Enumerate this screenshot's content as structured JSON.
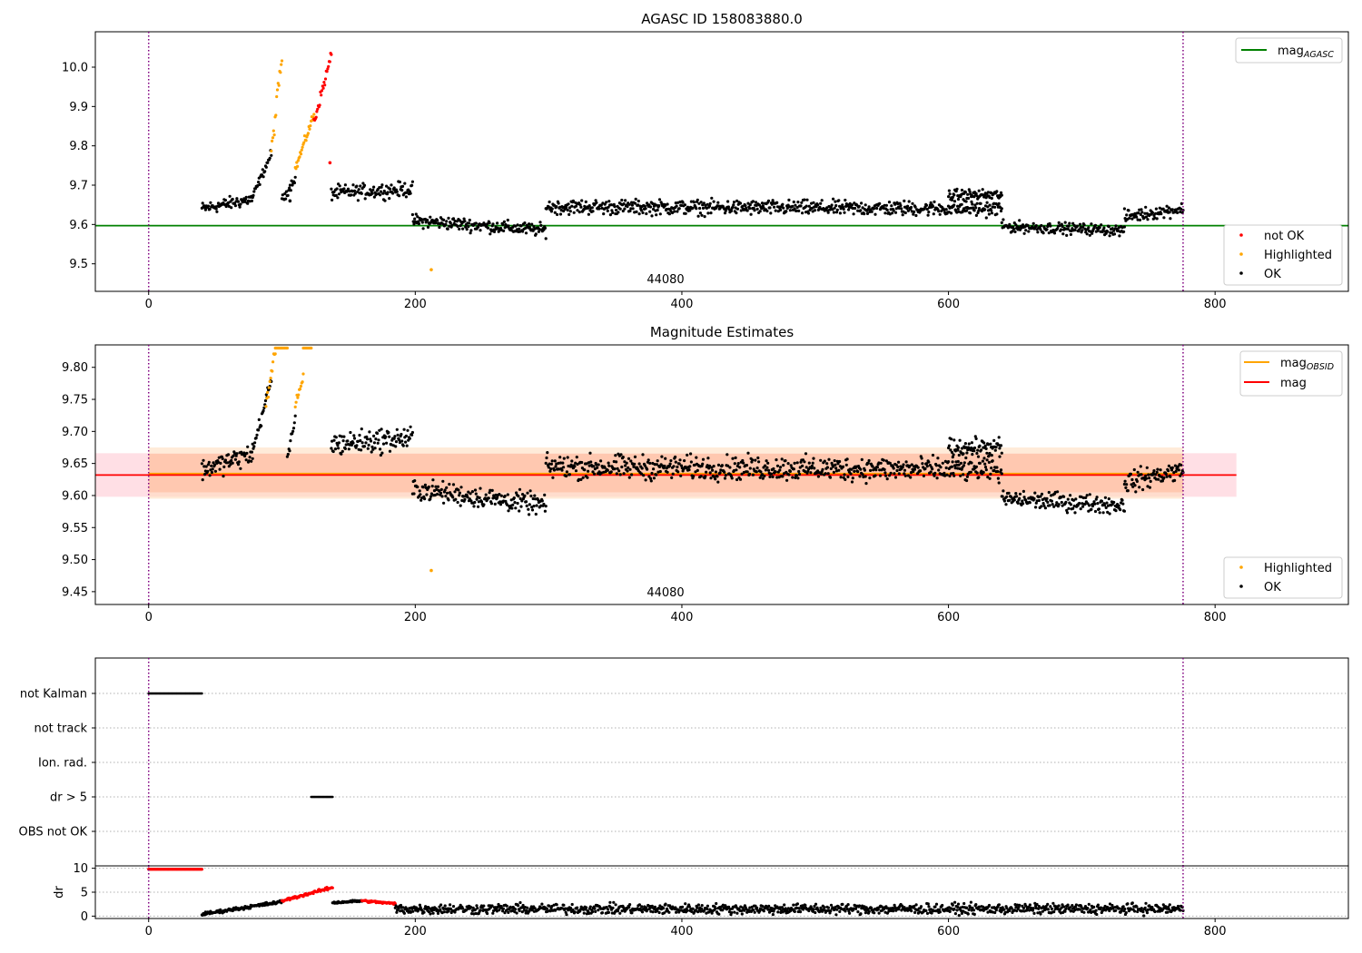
{
  "chart_data": [
    {
      "type": "scatter",
      "title": "AGASC ID 158083880.0",
      "xlim": [
        -40,
        900
      ],
      "ylim": [
        9.43,
        10.09
      ],
      "x_ticks": [
        0,
        200,
        400,
        600,
        800
      ],
      "y_ticks": [
        9.5,
        9.6,
        9.7,
        9.8,
        9.9,
        10.0
      ],
      "y_tick_labels": [
        "9.5",
        "9.6",
        "9.7",
        "9.8",
        "9.9",
        "10.0"
      ],
      "obsid_label": "44080",
      "obs_boundaries": [
        0,
        776
      ],
      "reference_lines": [
        {
          "y": 9.597,
          "color": "#008000"
        }
      ],
      "legend_top": {
        "placement": "upper-right",
        "entries": [
          {
            "label": "mag",
            "sub": "AGASC",
            "color": "#008000",
            "marker": "line"
          }
        ]
      },
      "legend_bottom": {
        "placement": "lower-right",
        "entries": [
          {
            "label": "not OK",
            "color": "#ff0000",
            "marker": "dot"
          },
          {
            "label": "Highlighted",
            "color": "#ffa500",
            "marker": "dot"
          },
          {
            "label": "OK",
            "color": "#000000",
            "marker": "dot"
          }
        ]
      },
      "segments": [
        {
          "x0": 40,
          "x1": 78,
          "y0": 9.64,
          "y1": 9.665,
          "noise": 0.014,
          "color": "#000000"
        },
        {
          "x0": 78,
          "x1": 92,
          "y0": 9.67,
          "y1": 9.78,
          "noise": 0.01,
          "color": "#000000"
        },
        {
          "x0": 92,
          "x1": 100,
          "y0": 9.78,
          "y1": 10.03,
          "noise": 0.02,
          "color": "#ffa500"
        },
        {
          "x0": 100,
          "x1": 110,
          "y0": 9.66,
          "y1": 9.72,
          "noise": 0.01,
          "color": "#000000"
        },
        {
          "x0": 110,
          "x1": 124,
          "y0": 9.74,
          "y1": 9.88,
          "noise": 0.01,
          "color": "#ffa500"
        },
        {
          "x0": 124,
          "x1": 137,
          "y0": 9.86,
          "y1": 10.03,
          "noise": 0.012,
          "color": "#ff0000"
        },
        {
          "x0": 137,
          "x1": 198,
          "y0": 9.68,
          "y1": 9.69,
          "noise": 0.016,
          "color": "#000000"
        },
        {
          "x0": 198,
          "x1": 298,
          "y0": 9.61,
          "y1": 9.585,
          "noise": 0.014,
          "color": "#000000"
        },
        {
          "x0": 298,
          "x1": 640,
          "y0": 9.645,
          "y1": 9.64,
          "noise": 0.016,
          "color": "#000000"
        },
        {
          "x0": 600,
          "x1": 640,
          "y0": 9.675,
          "y1": 9.675,
          "noise": 0.012,
          "color": "#000000"
        },
        {
          "x0": 640,
          "x1": 732,
          "y0": 9.595,
          "y1": 9.585,
          "noise": 0.012,
          "color": "#000000"
        },
        {
          "x0": 732,
          "x1": 776,
          "y0": 9.62,
          "y1": 9.64,
          "noise": 0.014,
          "color": "#000000"
        }
      ],
      "points": [
        {
          "x": 136,
          "y": 9.757,
          "color": "#ff0000"
        },
        {
          "x": 106,
          "y": 9.66,
          "color": "#000000"
        },
        {
          "x": 212,
          "y": 9.485,
          "color": "#ffa500"
        }
      ]
    },
    {
      "type": "scatter",
      "title": "Magnitude Estimates",
      "xlim": [
        -40,
        900
      ],
      "ylim": [
        9.43,
        9.835
      ],
      "x_ticks": [
        0,
        200,
        400,
        600,
        800
      ],
      "y_ticks": [
        9.45,
        9.5,
        9.55,
        9.6,
        9.65,
        9.7,
        9.75,
        9.8
      ],
      "y_tick_labels": [
        "9.45",
        "9.50",
        "9.55",
        "9.60",
        "9.65",
        "9.70",
        "9.75",
        "9.80"
      ],
      "obsid_label": "44080",
      "obs_boundaries": [
        0,
        776
      ],
      "bands": [
        {
          "x0": -40,
          "x1": 816,
          "y0": 9.598,
          "y1": 9.666,
          "color": "#ffc0cb",
          "opacity": 0.5
        },
        {
          "x0": 0,
          "x1": 776,
          "y0": 9.595,
          "y1": 9.675,
          "color": "#ffdab9",
          "opacity": 0.55
        },
        {
          "x0": 0,
          "x1": 776,
          "y0": 9.605,
          "y1": 9.665,
          "color": "#ffa07a",
          "opacity": 0.35
        }
      ],
      "lines": [
        {
          "x0": 0,
          "x1": 776,
          "y": 9.634,
          "color": "#ffa500",
          "width": 2.2
        },
        {
          "x0": -40,
          "x1": 816,
          "y": 9.632,
          "color": "#ff0000",
          "width": 1.8
        }
      ],
      "legend_top": {
        "placement": "upper-right",
        "entries": [
          {
            "label": "mag",
            "sub": "OBSID",
            "color": "#ffa500",
            "marker": "line"
          },
          {
            "label": "mag",
            "sub": "",
            "color": "#ff0000",
            "marker": "line"
          }
        ]
      },
      "legend_bottom": {
        "placement": "lower-right",
        "entries": [
          {
            "label": "Highlighted",
            "color": "#ffa500",
            "marker": "dot"
          },
          {
            "label": "OK",
            "color": "#000000",
            "marker": "dot"
          }
        ]
      },
      "segments": [
        {
          "x0": 40,
          "x1": 78,
          "y0": 9.64,
          "y1": 9.665,
          "noise": 0.014,
          "color": "#000000"
        },
        {
          "x0": 78,
          "x1": 92,
          "y0": 9.67,
          "y1": 9.78,
          "noise": 0.01,
          "color": "#000000"
        },
        {
          "x0": 88,
          "x1": 95,
          "y0": 9.74,
          "y1": 9.83,
          "noise": 0.008,
          "color": "#ffa500"
        },
        {
          "x0": 95,
          "x1": 104,
          "y0": 9.83,
          "y1": 9.83,
          "noise": 0.0,
          "color": "#ffa500"
        },
        {
          "x0": 104,
          "x1": 110,
          "y0": 9.66,
          "y1": 9.72,
          "noise": 0.01,
          "color": "#000000"
        },
        {
          "x0": 110,
          "x1": 116,
          "y0": 9.74,
          "y1": 9.78,
          "noise": 0.008,
          "color": "#ffa500"
        },
        {
          "x0": 116,
          "x1": 122,
          "y0": 9.83,
          "y1": 9.83,
          "noise": 0.0,
          "color": "#ffa500"
        },
        {
          "x0": 137,
          "x1": 198,
          "y0": 9.68,
          "y1": 9.69,
          "noise": 0.016,
          "color": "#000000"
        },
        {
          "x0": 198,
          "x1": 298,
          "y0": 9.61,
          "y1": 9.585,
          "noise": 0.014,
          "color": "#000000"
        },
        {
          "x0": 298,
          "x1": 640,
          "y0": 9.645,
          "y1": 9.64,
          "noise": 0.016,
          "color": "#000000"
        },
        {
          "x0": 600,
          "x1": 640,
          "y0": 9.675,
          "y1": 9.675,
          "noise": 0.012,
          "color": "#000000"
        },
        {
          "x0": 640,
          "x1": 732,
          "y0": 9.595,
          "y1": 9.585,
          "noise": 0.012,
          "color": "#000000"
        },
        {
          "x0": 732,
          "x1": 776,
          "y0": 9.62,
          "y1": 9.64,
          "noise": 0.014,
          "color": "#000000"
        }
      ],
      "points": [
        {
          "x": 212,
          "y": 9.483,
          "color": "#ffa500"
        }
      ]
    },
    {
      "type": "scatter",
      "title": "",
      "xlim": [
        -40,
        900
      ],
      "obs_boundaries": [
        0,
        776
      ],
      "flag_rows": [
        "not Kalman",
        "not track",
        "Ion. rad.",
        "dr > 5",
        "OBS not OK"
      ],
      "flag_runs": [
        {
          "row": 0,
          "x0": 0,
          "x1": 40,
          "color": "#000000"
        },
        {
          "row": 3,
          "x0": 122,
          "x1": 138,
          "color": "#000000"
        }
      ]
    },
    {
      "type": "scatter",
      "title": "",
      "ylabel": "dr",
      "xlim": [
        -40,
        900
      ],
      "ylim": [
        -0.5,
        10.5
      ],
      "x_ticks": [
        0,
        200,
        400,
        600,
        800
      ],
      "y_ticks": [
        0,
        5,
        10
      ],
      "y_tick_labels": [
        "0",
        "5",
        "10"
      ],
      "obs_boundaries": [
        0,
        776
      ],
      "segments": [
        {
          "x0": 0,
          "x1": 40,
          "y0": 9.8,
          "y1": 9.8,
          "noise": 0.0,
          "color": "#ff0000"
        },
        {
          "x0": 40,
          "x1": 100,
          "y0": 0.4,
          "y1": 3.0,
          "noise": 0.3,
          "color": "#000000"
        },
        {
          "x0": 100,
          "x1": 138,
          "y0": 3.2,
          "y1": 6.0,
          "noise": 0.25,
          "color": "#ff0000"
        },
        {
          "x0": 138,
          "x1": 160,
          "y0": 2.8,
          "y1": 3.2,
          "noise": 0.2,
          "color": "#000000"
        },
        {
          "x0": 160,
          "x1": 185,
          "y0": 3.2,
          "y1": 2.6,
          "noise": 0.2,
          "color": "#ff0000"
        },
        {
          "x0": 185,
          "x1": 776,
          "y0": 1.5,
          "y1": 1.5,
          "noise": 0.9,
          "color": "#000000"
        }
      ]
    }
  ]
}
